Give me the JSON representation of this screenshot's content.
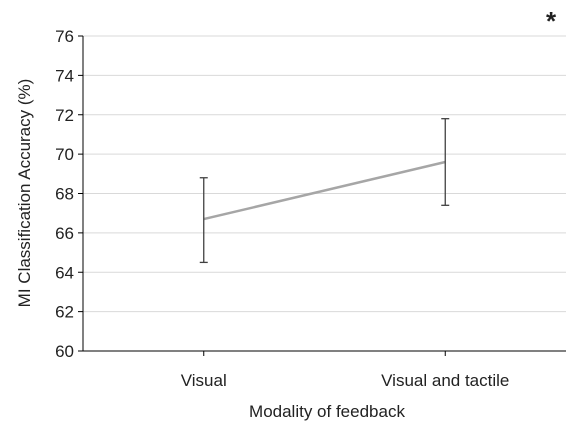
{
  "chart_data": {
    "type": "line",
    "categories": [
      "Visual",
      "Visual and tactile"
    ],
    "series": [
      {
        "values": [
          66.7,
          69.6
        ],
        "error_low": [
          64.5,
          67.4
        ],
        "error_high": [
          68.8,
          71.8
        ]
      }
    ],
    "xlabel": "Modality of feedback",
    "ylabel": "MI Classification Accuracy (%)",
    "ylim": [
      60,
      76
    ],
    "yticks": [
      "60",
      "62",
      "64",
      "66",
      "68",
      "70",
      "72",
      "74",
      "76"
    ],
    "annotation": "*",
    "grid": "horizontal",
    "colors": {
      "line": "#a6a6a6",
      "error_bar": "#404040",
      "grid": "#d9d9d9",
      "axis": "#000000"
    }
  }
}
